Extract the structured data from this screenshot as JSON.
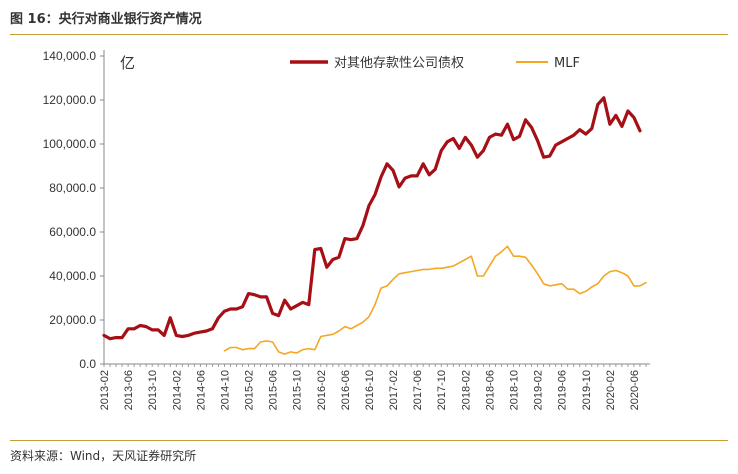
{
  "figure": {
    "title": "图 16：央行对商业银行资产情况",
    "source": "资料来源：Wind，天风证券研究所"
  },
  "colors": {
    "series_1": "#a50f15",
    "series_2": "#f5a623",
    "rule": "#c99a3a",
    "axis": "#888888"
  },
  "chart_data": {
    "type": "line",
    "title": "",
    "unit": "亿",
    "xlabel": "",
    "ylabel": "",
    "ylim": [
      0,
      140000
    ],
    "yticks": [
      0,
      20000,
      40000,
      60000,
      80000,
      100000,
      120000,
      140000
    ],
    "ytick_labels": [
      "0.0",
      "20,000.0",
      "40,000.0",
      "60,000.0",
      "80,000.0",
      "100,000.0",
      "120,000.0",
      "140,000.0"
    ],
    "xtick_labels": [
      "2013-02",
      "2013-06",
      "2013-10",
      "2014-02",
      "2014-06",
      "2014-10",
      "2015-02",
      "2015-06",
      "2015-10",
      "2016-02",
      "2016-06",
      "2016-10",
      "2017-02",
      "2017-06",
      "2017-10",
      "2018-02",
      "2018-06",
      "2018-10",
      "2019-02",
      "2019-06",
      "2019-10",
      "2020-02",
      "2020-06"
    ],
    "grid": false,
    "legend": "top-center",
    "x": [
      "2013-02",
      "2013-03",
      "2013-04",
      "2013-05",
      "2013-06",
      "2013-07",
      "2013-08",
      "2013-09",
      "2013-10",
      "2013-11",
      "2013-12",
      "2014-01",
      "2014-02",
      "2014-03",
      "2014-04",
      "2014-05",
      "2014-06",
      "2014-07",
      "2014-08",
      "2014-09",
      "2014-10",
      "2014-11",
      "2014-12",
      "2015-01",
      "2015-02",
      "2015-03",
      "2015-04",
      "2015-05",
      "2015-06",
      "2015-07",
      "2015-08",
      "2015-09",
      "2015-10",
      "2015-11",
      "2015-12",
      "2016-01",
      "2016-02",
      "2016-03",
      "2016-04",
      "2016-05",
      "2016-06",
      "2016-07",
      "2016-08",
      "2016-09",
      "2016-10",
      "2016-11",
      "2016-12",
      "2017-01",
      "2017-02",
      "2017-03",
      "2017-04",
      "2017-05",
      "2017-06",
      "2017-07",
      "2017-08",
      "2017-09",
      "2017-10",
      "2017-11",
      "2017-12",
      "2018-01",
      "2018-02",
      "2018-03",
      "2018-04",
      "2018-05",
      "2018-06",
      "2018-07",
      "2018-08",
      "2018-09",
      "2018-10",
      "2018-11",
      "2018-12",
      "2019-01",
      "2019-02",
      "2019-03",
      "2019-04",
      "2019-05",
      "2019-06",
      "2019-07",
      "2019-08",
      "2019-09",
      "2019-10",
      "2019-11",
      "2019-12",
      "2020-01",
      "2020-02",
      "2020-03",
      "2020-04",
      "2020-05",
      "2020-06",
      "2020-07",
      "2020-08"
    ],
    "series": [
      {
        "name": "对其他存款性公司债权",
        "color": "#a50f15",
        "values": [
          13000,
          11500,
          12000,
          12000,
          16000,
          16000,
          17500,
          17000,
          15500,
          15500,
          13000,
          21000,
          13000,
          12500,
          13000,
          14000,
          14500,
          15000,
          16000,
          21000,
          24000,
          25000,
          25000,
          26000,
          32000,
          31500,
          30500,
          30500,
          23000,
          22000,
          29000,
          25000,
          26500,
          28000,
          27000,
          52000,
          52500,
          44000,
          47500,
          48500,
          57000,
          56500,
          57000,
          63000,
          72000,
          77000,
          85000,
          91000,
          88000,
          80500,
          84500,
          85500,
          85500,
          91000,
          86000,
          88500,
          97000,
          101000,
          102500,
          98000,
          103000,
          99500,
          94000,
          97000,
          103000,
          104500,
          104000,
          109000,
          102000,
          103500,
          111000,
          107500,
          101500,
          94000,
          94500,
          99500,
          101000,
          102500,
          104000,
          106500,
          104500,
          107000,
          118000,
          121000,
          109000,
          113000,
          108000,
          115000,
          112000,
          106000,
          null
        ]
      },
      {
        "name": "MLF",
        "color": "#f5a623",
        "values": [
          null,
          null,
          null,
          null,
          null,
          null,
          null,
          null,
          null,
          null,
          null,
          null,
          null,
          null,
          null,
          null,
          null,
          null,
          null,
          null,
          6000,
          7500,
          7500,
          6500,
          7000,
          7000,
          10000,
          10500,
          10000,
          5500,
          4500,
          5500,
          5000,
          6500,
          7000,
          6500,
          12500,
          13000,
          13500,
          15000,
          17000,
          16000,
          17500,
          19000,
          21500,
          27000,
          34500,
          35500,
          38500,
          41000,
          41500,
          42000,
          42500,
          43000,
          43000,
          43500,
          43500,
          44000,
          44500,
          46000,
          47500,
          49000,
          40000,
          40000,
          44500,
          49000,
          51000,
          53500,
          49000,
          49000,
          48500,
          45000,
          41000,
          36500,
          35500,
          36000,
          36500,
          34000,
          34000,
          32000,
          33000,
          35000,
          36500,
          40000,
          42000,
          42500,
          41500,
          40000,
          35500,
          35500,
          37000
        ]
      }
    ]
  }
}
